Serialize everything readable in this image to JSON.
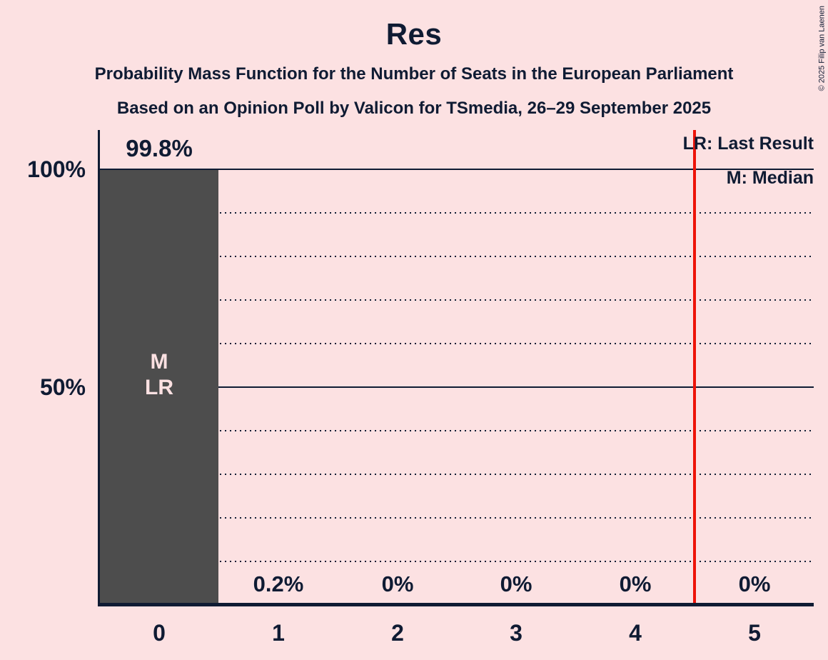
{
  "title": "Res",
  "subtitles": {
    "line1": "Probability Mass Function for the Number of Seats in the European Parliament",
    "line2": "Based on an Opinion Poll by Valicon for TSmedia, 26–29 September 2025"
  },
  "copyright": "© 2025 Filip van Laenen",
  "legend": {
    "last_result": "LR: Last Result",
    "median": "M: Median"
  },
  "chart_data": {
    "type": "bar",
    "title": "Res",
    "categories": [
      "0",
      "1",
      "2",
      "3",
      "4",
      "5"
    ],
    "values": [
      99.8,
      0.2,
      0,
      0,
      0,
      0
    ],
    "value_labels": [
      "99.8%",
      "0.2%",
      "0%",
      "0%",
      "0%",
      "0%"
    ],
    "y_tick_labels": {
      "top": "100%",
      "middle": "50%"
    },
    "ylim": [
      0,
      100
    ],
    "grid": {
      "dotted_every_pct": 10,
      "solid_pct": [
        50,
        100
      ],
      "legend_position": "top-right"
    },
    "annotations": {
      "median_label": "M",
      "last_result_label": "LR",
      "annotated_bar_index": 0
    },
    "last_result_line_between": "4 and 5",
    "colors": {
      "background": "#fce1e2",
      "bar": "#4d4d4d",
      "text": "#0f1b33",
      "bar_label": "#fce1e2",
      "last_result_line": "#ed1309"
    }
  }
}
